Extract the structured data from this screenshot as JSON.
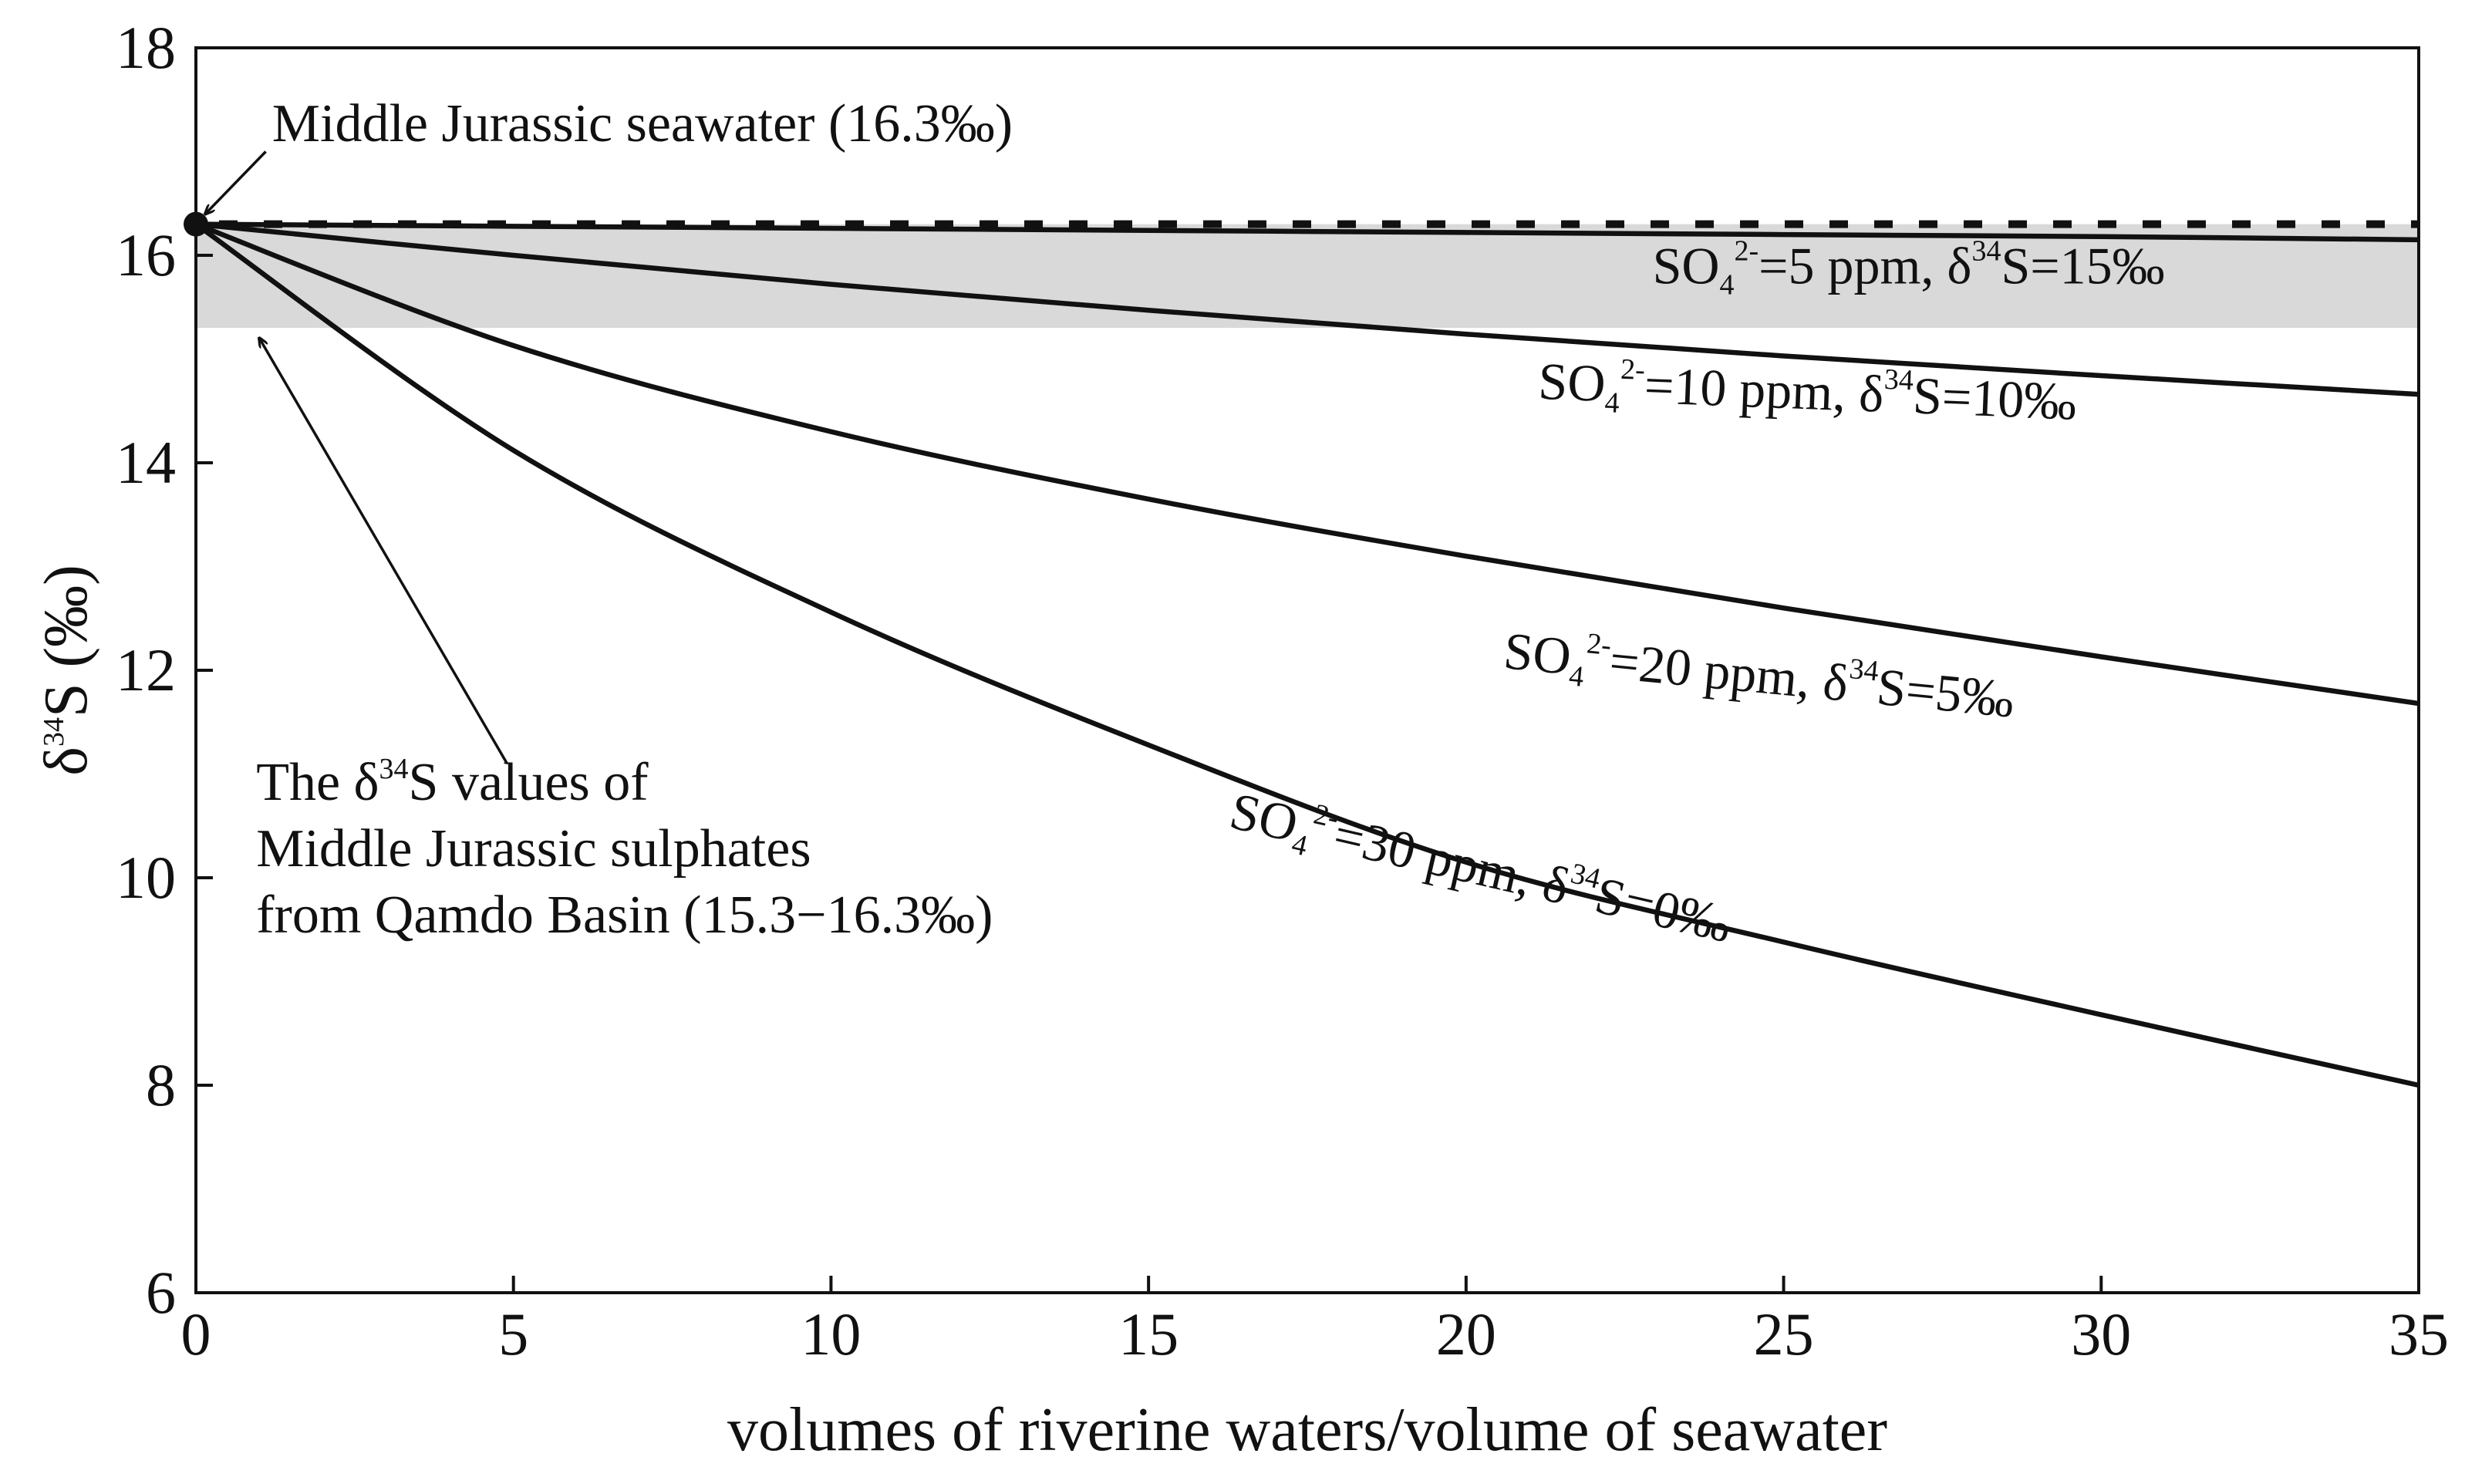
{
  "chart_data": {
    "type": "line",
    "title": "",
    "xlabel": "volumes of riverine waters/volume of seawater",
    "ylabel": {
      "delta": "δ",
      "mass": "34",
      "rest": "S (‰)"
    },
    "xlim": [
      0,
      35
    ],
    "ylim": [
      6,
      18
    ],
    "xticks": [
      "0",
      "5",
      "10",
      "15",
      "20",
      "25",
      "30",
      "35"
    ],
    "yticks": [
      "6",
      "8",
      "10",
      "12",
      "14",
      "16",
      "18"
    ],
    "xtick_values": [
      0,
      5,
      10,
      15,
      20,
      25,
      30,
      35
    ],
    "ytick_values": [
      6,
      8,
      10,
      12,
      14,
      16,
      18
    ],
    "grid": false,
    "band": {
      "y_min": 15.3,
      "y_max": 16.3,
      "color": "#d9d9d9"
    },
    "reference_line": {
      "y": 16.3,
      "style": "dashed",
      "color": "#111111"
    },
    "start_point": {
      "x": 0,
      "y": 16.3
    },
    "series": [
      {
        "name": "SO4 2- = 5 ppm, δ34S = 15‰",
        "x": [
          0,
          5,
          10,
          15,
          20,
          25,
          30,
          35
        ],
        "values": [
          16.3,
          16.28,
          16.26,
          16.24,
          16.22,
          16.2,
          16.18,
          16.15
        ]
      },
      {
        "name": "SO4 2- = 10 ppm, δ34S = 10‰",
        "x": [
          0,
          5,
          10,
          15,
          20,
          25,
          30,
          35
        ],
        "values": [
          16.3,
          16.0,
          15.72,
          15.47,
          15.24,
          15.03,
          14.84,
          14.66
        ]
      },
      {
        "name": "SO4 2- = 20 ppm, δ34S = 5‰",
        "x": [
          0,
          5,
          10,
          15,
          20,
          25,
          30,
          35
        ],
        "values": [
          16.3,
          15.13,
          14.3,
          13.65,
          13.1,
          12.6,
          12.13,
          11.68
        ]
      },
      {
        "name": "SO4 2- = 30 ppm, δ34S = 0‰",
        "x": [
          0,
          5,
          10,
          15,
          20,
          25,
          30,
          35
        ],
        "values": [
          16.3,
          14.12,
          12.56,
          11.28,
          10.15,
          9.38,
          8.68,
          8.0
        ]
      }
    ],
    "curve_labels": [
      {
        "series": 0,
        "so": "SO",
        "sub": "4",
        "charge": "2-",
        "conc": "=5 ppm, ",
        "delta": "δ",
        "mass": "34",
        "value": "S=15‰",
        "anchor_x": 31,
        "anchor_y": 15.73,
        "angle": 0
      },
      {
        "series": 1,
        "so": "SO",
        "sub": "4",
        "charge": "2-",
        "conc": "=10 ppm, ",
        "delta": "δ",
        "mass": "34",
        "value": "S=10‰",
        "anchor_x": 29.6,
        "anchor_y": 14.42,
        "angle": 2.2
      },
      {
        "series": 2,
        "so": "SO",
        "sub": "4",
        "charge": "2-",
        "conc": "=20 ppm, ",
        "delta": "δ",
        "mass": "34",
        "value": "S=5‰",
        "anchor_x": 28.6,
        "anchor_y": 11.55,
        "angle": 5.5
      },
      {
        "series": 3,
        "so": "SO",
        "sub": "4",
        "charge": "2-",
        "conc": "=30 ppm, ",
        "delta": "δ",
        "mass": "34",
        "value": "S=0‰",
        "anchor_x": 24.1,
        "anchor_y": 9.38,
        "angle": 13
      }
    ],
    "annotations": {
      "seawater": {
        "text": "Middle Jurassic seawater (16.3‰)",
        "text_x": 1.2,
        "text_y": 17.1,
        "arrow_from": [
          1.1,
          17.0
        ],
        "arrow_to": [
          0.15,
          16.4
        ]
      },
      "sulphates": {
        "line1_pre": "The ",
        "line1_delta": "δ",
        "line1_mass": "34",
        "line1_post": "S values of",
        "line2": "Middle Jurassic sulphates",
        "line3": "from Qamdo Basin (15.3−16.3‰)",
        "text_x": 0.95,
        "text_y": 10.75,
        "arrow_from": [
          4.9,
          11.1
        ],
        "arrow_to": [
          1.0,
          15.2
        ]
      }
    }
  }
}
